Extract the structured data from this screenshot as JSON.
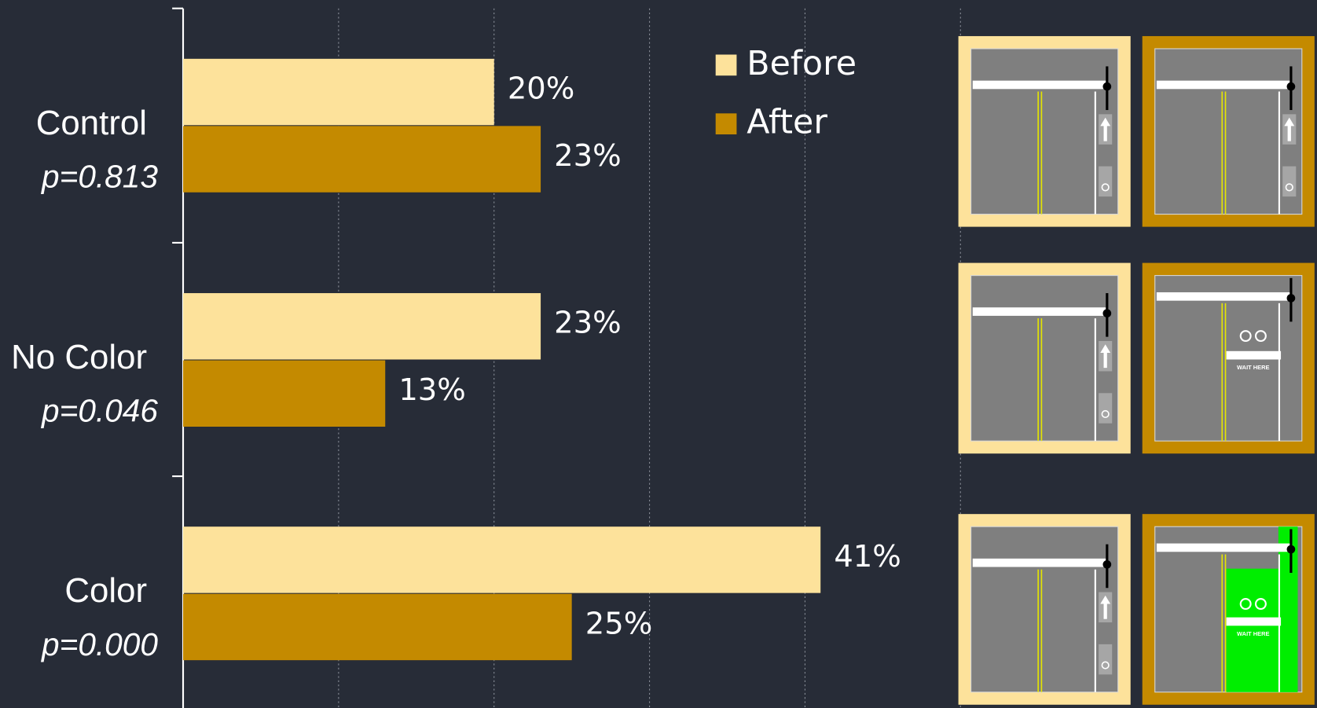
{
  "chart_data": {
    "type": "bar",
    "orientation": "horizontal",
    "categories": [
      "Control",
      "No Color",
      "Color"
    ],
    "p_values": [
      "p=0.813",
      "p=0.046",
      "p=0.000"
    ],
    "series": [
      {
        "name": "Before",
        "color": "#fde29b",
        "values": [
          20,
          23,
          41
        ],
        "value_labels": [
          "20%",
          "23%",
          "41%"
        ]
      },
      {
        "name": "After",
        "color": "#c48a00",
        "values": [
          23,
          13,
          25
        ],
        "value_labels": [
          "23%",
          "13%",
          "25%"
        ]
      }
    ],
    "xlim": [
      0,
      50
    ],
    "xticks": [
      10,
      20,
      30,
      40,
      50
    ],
    "grid": true,
    "legend": "top-right",
    "diagram_labels": [
      "WAIT HERE",
      "WAIT HERE"
    ]
  }
}
